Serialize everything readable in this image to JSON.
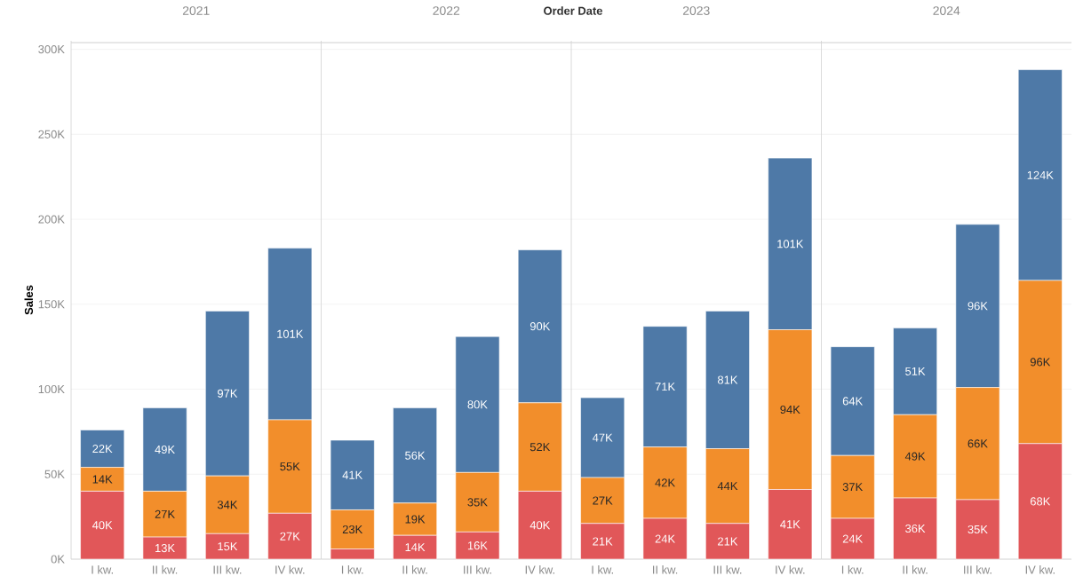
{
  "chart_data": [
    {
      "type": "bar",
      "stacked": true,
      "title": "2021",
      "ylabel": "Sales",
      "annotations": [
        "Order Date"
      ],
      "grid": "y",
      "categories": [
        "I kw.",
        "II kw.",
        "III kw.",
        "IV kw."
      ],
      "ylim": [
        0,
        305
      ],
      "yticks": [
        {
          "value": 0,
          "label": "0K"
        },
        {
          "value": 50,
          "label": "50K"
        },
        {
          "value": 100,
          "label": "100K"
        },
        {
          "value": 150,
          "label": "150K"
        },
        {
          "value": 200,
          "label": "200K"
        },
        {
          "value": 250,
          "label": "250K"
        },
        {
          "value": 300,
          "label": "300K"
        }
      ],
      "series": [
        {
          "color": "#e15759",
          "values": [
            40,
            13,
            15,
            27
          ],
          "value_labels": [
            "40K",
            "13K",
            "15K",
            "27K"
          ]
        },
        {
          "color": "#f28e2b",
          "values": [
            14,
            27,
            34,
            55
          ],
          "value_labels": [
            "14K",
            "27K",
            "34K",
            "55K"
          ]
        },
        {
          "color": "#4e79a7",
          "values": [
            22,
            49,
            97,
            101
          ],
          "value_labels": [
            "22K",
            "49K",
            "97K",
            "101K"
          ]
        }
      ]
    },
    {
      "type": "bar",
      "stacked": true,
      "title": "2022",
      "grid": "y",
      "tick_labels": "x",
      "categories": [
        "I kw.",
        "II kw.",
        "III kw.",
        "IV kw."
      ],
      "ylim": [
        0,
        305
      ],
      "yticks": [
        {
          "value": 0,
          "label": null
        },
        {
          "value": 50,
          "label": null
        },
        {
          "value": 100,
          "label": null
        },
        {
          "value": 150,
          "label": null
        },
        {
          "value": 200,
          "label": null
        },
        {
          "value": 250,
          "label": null
        },
        {
          "value": 300,
          "label": null
        }
      ],
      "series": [
        {
          "color": "#e15759",
          "values": [
            6,
            14,
            16,
            40
          ],
          "value_labels": [
            null,
            "14K",
            "16K",
            "40K"
          ]
        },
        {
          "color": "#f28e2b",
          "values": [
            23,
            19,
            35,
            52
          ],
          "value_labels": [
            "23K",
            "19K",
            "35K",
            "52K"
          ]
        },
        {
          "color": "#4e79a7",
          "values": [
            41,
            56,
            80,
            90
          ],
          "value_labels": [
            "41K",
            "56K",
            "80K",
            "90K"
          ]
        }
      ]
    },
    {
      "type": "bar",
      "stacked": true,
      "title": "2023",
      "grid": "y",
      "tick_labels": "x",
      "categories": [
        "I kw.",
        "II kw.",
        "III kw.",
        "IV kw."
      ],
      "ylim": [
        0,
        305
      ],
      "yticks": [
        {
          "value": 0,
          "label": null
        },
        {
          "value": 50,
          "label": null
        },
        {
          "value": 100,
          "label": null
        },
        {
          "value": 150,
          "label": null
        },
        {
          "value": 200,
          "label": null
        },
        {
          "value": 250,
          "label": null
        },
        {
          "value": 300,
          "label": null
        }
      ],
      "series": [
        {
          "color": "#e15759",
          "values": [
            21,
            24,
            21,
            41
          ],
          "value_labels": [
            "21K",
            "24K",
            "21K",
            "41K"
          ]
        },
        {
          "color": "#f28e2b",
          "values": [
            27,
            42,
            44,
            94
          ],
          "value_labels": [
            "27K",
            "42K",
            "44K",
            "94K"
          ]
        },
        {
          "color": "#4e79a7",
          "values": [
            47,
            71,
            81,
            101
          ],
          "value_labels": [
            "47K",
            "71K",
            "81K",
            "101K"
          ]
        }
      ]
    },
    {
      "type": "bar",
      "stacked": true,
      "title": "2024",
      "grid": "y",
      "tick_labels": "x",
      "categories": [
        "I kw.",
        "II kw.",
        "III kw.",
        "IV kw."
      ],
      "ylim": [
        0,
        305
      ],
      "yticks": [
        {
          "value": 0,
          "label": null
        },
        {
          "value": 50,
          "label": null
        },
        {
          "value": 100,
          "label": null
        },
        {
          "value": 150,
          "label": null
        },
        {
          "value": 200,
          "label": null
        },
        {
          "value": 250,
          "label": null
        },
        {
          "value": 300,
          "label": null
        }
      ],
      "series": [
        {
          "color": "#e15759",
          "values": [
            24,
            36,
            35,
            68
          ],
          "value_labels": [
            "24K",
            "36K",
            "35K",
            "68K"
          ]
        },
        {
          "color": "#f28e2b",
          "values": [
            37,
            49,
            66,
            96
          ],
          "value_labels": [
            "37K",
            "49K",
            "66K",
            "96K"
          ]
        },
        {
          "color": "#4e79a7",
          "values": [
            64,
            51,
            96,
            124
          ],
          "value_labels": [
            "64K",
            "51K",
            "96K",
            "124K"
          ]
        }
      ]
    }
  ]
}
